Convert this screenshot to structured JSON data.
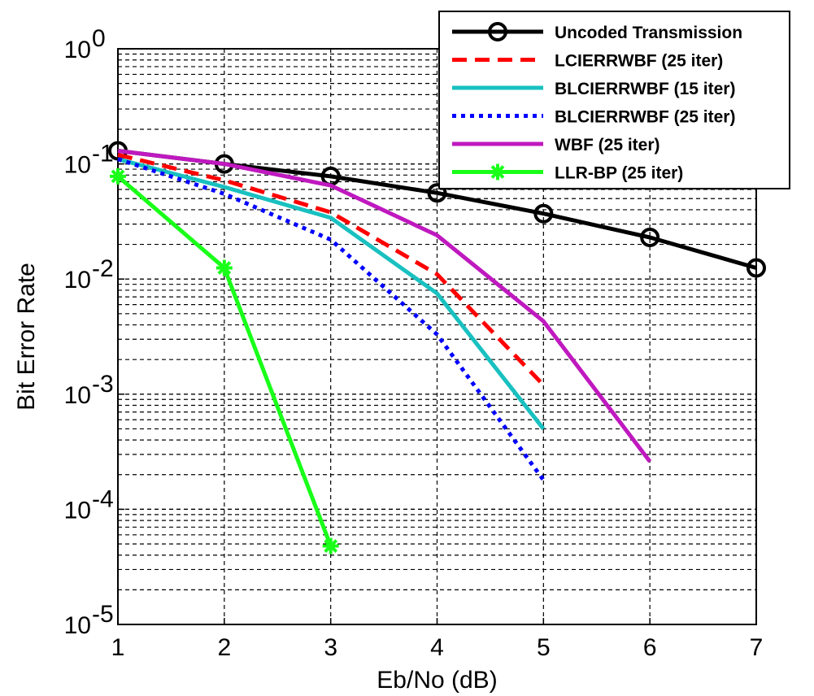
{
  "chart_data": {
    "type": "line",
    "xlabel": "Eb/No (dB)",
    "ylabel": "Bit Error Rate",
    "xlim": [
      1,
      7
    ],
    "ylim": [
      1e-05,
      1
    ],
    "yscale": "log",
    "grid": "on",
    "legend_position": "top-right",
    "x_ticks": [
      "1",
      "2",
      "3",
      "4",
      "5",
      "6",
      "7"
    ],
    "y_ticks": [
      {
        "value": 1,
        "base": "10",
        "exp": "0"
      },
      {
        "value": 0.1,
        "base": "10",
        "exp": "-1"
      },
      {
        "value": 0.01,
        "base": "10",
        "exp": "-2"
      },
      {
        "value": 0.001,
        "base": "10",
        "exp": "-3"
      },
      {
        "value": 0.0001,
        "base": "10",
        "exp": "-4"
      },
      {
        "value": 1e-05,
        "base": "10",
        "exp": "-5"
      }
    ],
    "series": [
      {
        "name": "Uncoded Transmission",
        "color": "#000000",
        "style": "solid",
        "marker": "circle",
        "x": [
          1,
          2,
          3,
          4,
          5,
          6,
          7
        ],
        "y": [
          0.13,
          0.1,
          0.078,
          0.056,
          0.037,
          0.023,
          0.0125
        ]
      },
      {
        "name": "LCIERRWBF (25 iter)",
        "color": "#ff0000",
        "style": "dashed",
        "marker": "none",
        "x": [
          1,
          2,
          3,
          4,
          5
        ],
        "y": [
          0.12,
          0.072,
          0.038,
          0.011,
          0.0012
        ]
      },
      {
        "name": "BLCIERRWBF (15 iter)",
        "color": "#19c0c0",
        "style": "solid",
        "marker": "none",
        "x": [
          1,
          2,
          3,
          4,
          5
        ],
        "y": [
          0.11,
          0.063,
          0.034,
          0.0075,
          0.0005
        ]
      },
      {
        "name": "BLCIERRWBF (25 iter)",
        "color": "#0000ff",
        "style": "dotted",
        "marker": "none",
        "x": [
          1,
          2,
          3,
          4,
          5
        ],
        "y": [
          0.11,
          0.055,
          0.022,
          0.0033,
          0.00018
        ]
      },
      {
        "name": "WBF (25 iter)",
        "color": "#bf19bf",
        "style": "solid",
        "marker": "none",
        "x": [
          1,
          2,
          3,
          4,
          5,
          6
        ],
        "y": [
          0.13,
          0.1,
          0.065,
          0.024,
          0.0043,
          0.00026
        ]
      },
      {
        "name": "LLR-BP (25 iter)",
        "color": "#19ff19",
        "style": "solid",
        "marker": "star",
        "x": [
          1,
          2,
          3
        ],
        "y": [
          0.078,
          0.0125,
          4.8e-05
        ]
      }
    ]
  }
}
